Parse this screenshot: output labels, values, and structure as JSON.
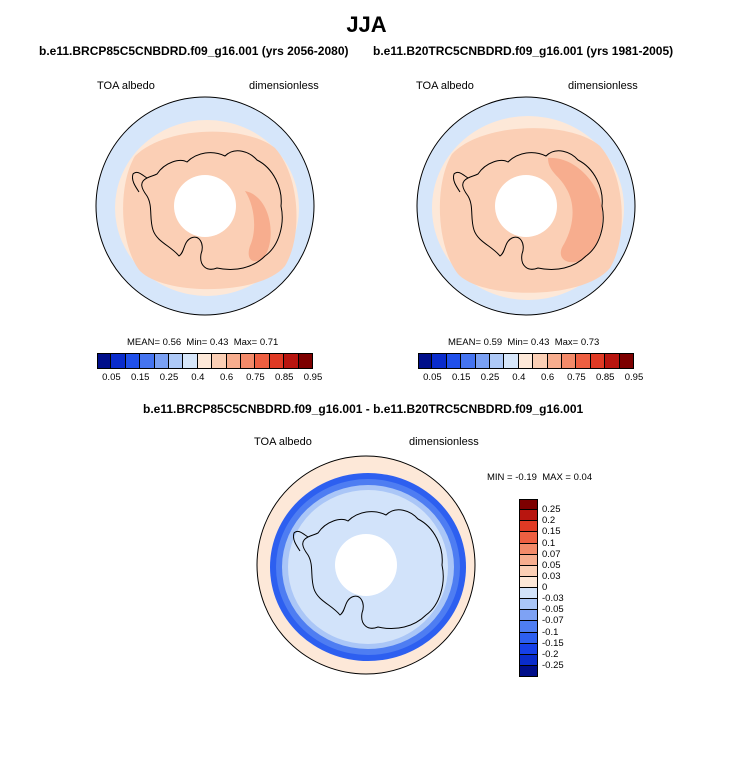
{
  "figure_title": "JJA",
  "panels": [
    {
      "case": "b.e11.BRCP85C5CNBDRD.f09_g16.001 (yrs 2056-2080)",
      "variable": "TOA albedo",
      "units": "dimensionless",
      "stats": {
        "mean_label": "MEAN=",
        "mean": "0.56",
        "min_label": "Min=",
        "min": "0.43",
        "max_label": "Max=",
        "max": "0.71"
      }
    },
    {
      "case": "b.e11.B20TRC5CNBDRD.f09_g16.001 (yrs 1981-2005)",
      "variable": "TOA albedo",
      "units": "dimensionless",
      "stats": {
        "mean_label": "MEAN=",
        "mean": "0.59",
        "min_label": "Min=",
        "min": "0.43",
        "max_label": "Max=",
        "max": "0.73"
      }
    },
    {
      "case": "b.e11.BRCP85C5CNBDRD.f09_g16.001 - b.e11.B20TRC5CNBDRD.f09_g16.001",
      "variable": "TOA albedo",
      "units": "dimensionless",
      "stats": {
        "min_label": "MIN =",
        "min": "-0.19",
        "max_label": "MAX =",
        "max": "0.04"
      }
    }
  ],
  "colorbar_abs": {
    "colors": [
      "#000e8a",
      "#0a2ccc",
      "#2050ea",
      "#4574f0",
      "#7aa0f3",
      "#aec9f7",
      "#d6e6fa",
      "#fde8d8",
      "#fbcfb5",
      "#f7ad8e",
      "#f38a69",
      "#ee5f41",
      "#e03a24",
      "#b8150f",
      "#7d0000"
    ],
    "tick_labels": [
      "0.05",
      "0.15",
      "0.25",
      "0.4",
      "0.6",
      "0.75",
      "0.85",
      "0.95"
    ]
  },
  "colorbar_diff": {
    "colors": [
      "#000e8a",
      "#0a2ccc",
      "#1640e8",
      "#2d5ff0",
      "#4e7df2",
      "#7ea2f4",
      "#aac6f7",
      "#d2e3fa",
      "#fde8d8",
      "#fbcfb5",
      "#f7ad8e",
      "#f38a69",
      "#ee5f41",
      "#e03a24",
      "#b8150f",
      "#7d0000"
    ],
    "tick_labels": [
      "0.25",
      "0.2",
      "0.15",
      "0.1",
      "0.07",
      "0.05",
      "0.03",
      "0",
      "-0.03",
      "-0.05",
      "-0.07",
      "-0.1",
      "-0.15",
      "-0.2",
      "-0.25"
    ]
  },
  "chart_data": [
    {
      "type": "heatmap",
      "title": "b.e11.BRCP85C5CNBDRD.f09_g16.001 (yrs 2056-2080)",
      "variable": "TOA albedo",
      "units": "dimensionless",
      "projection": "south polar stereographic",
      "mean": 0.56,
      "min": 0.43,
      "max": 0.71,
      "levels": [
        0.05,
        0.1,
        0.15,
        0.2,
        0.25,
        0.3,
        0.4,
        0.5,
        0.6,
        0.65,
        0.7,
        0.75,
        0.8,
        0.85,
        0.9,
        0.95
      ],
      "approx_zones": [
        {
          "region": "outer ocean (lower latitudes)",
          "value_range": [
            0.4,
            0.5
          ]
        },
        {
          "region": "sea-ice edge ring",
          "value_range": [
            0.5,
            0.6
          ]
        },
        {
          "region": "sea ice and Antarctic continent",
          "value_range": [
            0.6,
            0.65
          ]
        },
        {
          "region": "East Antarctic plateau strip",
          "value_range": [
            0.65,
            0.7
          ]
        },
        {
          "region": "polar data gap",
          "value": null
        }
      ]
    },
    {
      "type": "heatmap",
      "title": "b.e11.B20TRC5CNBDRD.f09_g16.001 (yrs 1981-2005)",
      "variable": "TOA albedo",
      "units": "dimensionless",
      "projection": "south polar stereographic",
      "mean": 0.59,
      "min": 0.43,
      "max": 0.73,
      "levels": [
        0.05,
        0.1,
        0.15,
        0.2,
        0.25,
        0.3,
        0.4,
        0.5,
        0.6,
        0.65,
        0.7,
        0.75,
        0.8,
        0.85,
        0.9,
        0.95
      ],
      "approx_zones": [
        {
          "region": "outer ocean (lower latitudes)",
          "value_range": [
            0.4,
            0.5
          ]
        },
        {
          "region": "sea-ice edge ring",
          "value_range": [
            0.5,
            0.6
          ]
        },
        {
          "region": "sea ice and Antarctic continent",
          "value_range": [
            0.6,
            0.65
          ]
        },
        {
          "region": "East Antarctic plateau",
          "value_range": [
            0.65,
            0.7
          ]
        },
        {
          "region": "polar data gap",
          "value": null
        }
      ]
    },
    {
      "type": "heatmap",
      "title": "b.e11.BRCP85C5CNBDRD.f09_g16.001 - b.e11.B20TRC5CNBDRD.f09_g16.001",
      "variable": "TOA albedo",
      "units": "dimensionless",
      "projection": "south polar stereographic",
      "min": -0.19,
      "max": 0.04,
      "levels": [
        -0.25,
        -0.2,
        -0.15,
        -0.1,
        -0.07,
        -0.05,
        -0.03,
        0,
        0.03,
        0.05,
        0.07,
        0.1,
        0.15,
        0.2,
        0.25
      ],
      "approx_zones": [
        {
          "region": "outer ocean",
          "value_range": [
            0,
            0.03
          ]
        },
        {
          "region": "sea-ice edge ring",
          "value_range": [
            -0.15,
            -0.07
          ]
        },
        {
          "region": "inner sea-ice ring",
          "value_range": [
            -0.07,
            -0.03
          ]
        },
        {
          "region": "Antarctic continent",
          "value_range": [
            -0.03,
            0
          ]
        },
        {
          "region": "polar data gap",
          "value": null
        }
      ]
    }
  ]
}
